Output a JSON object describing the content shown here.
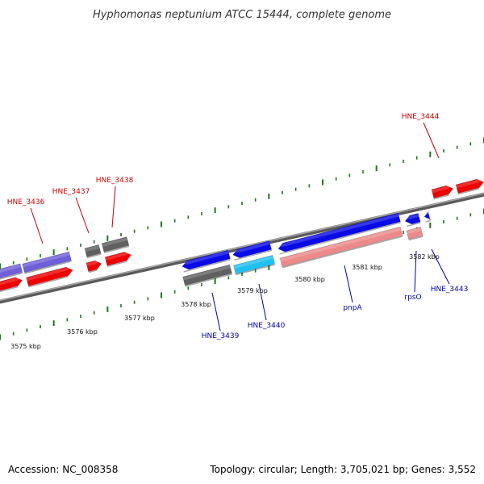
{
  "title": "Hyphomonas neptunium ATCC 15444, complete genome",
  "footer": {
    "accession": "Accession: NC_008358",
    "topology": "Topology: circular; Length: 3,705,021 bp; Genes: 3,552"
  },
  "colors": {
    "backbone": "#7a7a7a",
    "tick": "#1a7a1a",
    "label_forward": "#cc0000",
    "label_reverse": "#0000aa",
    "leader": "#000000"
  },
  "scale_labels": [
    "3575 kbp",
    "3576 kbp",
    "3577 kbp",
    "3578 kbp",
    "3579 kbp",
    "3580 kbp",
    "3581 kbp",
    "3582 kbp"
  ],
  "gene_labels": [
    {
      "name": "HNE_3436",
      "strand": "forward"
    },
    {
      "name": "HNE_3437",
      "strand": "forward"
    },
    {
      "name": "HNE_3438",
      "strand": "forward"
    },
    {
      "name": "HNE_3444",
      "strand": "forward"
    },
    {
      "name": "HNE_3439",
      "strand": "reverse"
    },
    {
      "name": "HNE_3440",
      "strand": "reverse"
    },
    {
      "name": "pnpA",
      "strand": "reverse"
    },
    {
      "name": "rpsO",
      "strand": "reverse"
    },
    {
      "name": "HNE_3443",
      "strand": "reverse"
    }
  ],
  "features": [
    {
      "name": "purple-reverse-1",
      "color": "#6f5fd8",
      "strand": "reverse"
    },
    {
      "name": "purple-reverse-2",
      "color": "#6f5fd8",
      "strand": "reverse"
    },
    {
      "name": "red-forward-1",
      "color": "#ee0000",
      "strand": "forward"
    },
    {
      "name": "red-forward-2",
      "color": "#ee0000",
      "strand": "forward"
    },
    {
      "name": "red-forward-3",
      "color": "#ee0000",
      "strand": "forward"
    },
    {
      "name": "red-forward-4",
      "color": "#ee0000",
      "strand": "forward"
    },
    {
      "name": "red-forward-5",
      "color": "#ee0000",
      "strand": "forward"
    },
    {
      "name": "red-forward-6",
      "color": "#ee0000",
      "strand": "forward"
    },
    {
      "name": "gray-feature-1",
      "color": "#606060",
      "strand": "reverse"
    },
    {
      "name": "gray-feature-2",
      "color": "#606060",
      "strand": "reverse"
    },
    {
      "name": "gray-feature-3",
      "color": "#606060",
      "strand": "reverse"
    },
    {
      "name": "blue-reverse-1",
      "color": "#0a0ae6",
      "strand": "reverse"
    },
    {
      "name": "blue-reverse-2",
      "color": "#0a0ae6",
      "strand": "reverse"
    },
    {
      "name": "blue-reverse-3",
      "color": "#0a0ae6",
      "strand": "reverse"
    },
    {
      "name": "blue-reverse-4",
      "color": "#0a0ae6",
      "strand": "reverse"
    },
    {
      "name": "blue-reverse-5",
      "color": "#0a0ae6",
      "strand": "reverse"
    },
    {
      "name": "cyan-reverse-1",
      "color": "#20c0f0",
      "strand": "reverse"
    },
    {
      "name": "pink-feature-1",
      "color": "#ec8a8a",
      "strand": "reverse"
    },
    {
      "name": "pink-feature-2",
      "color": "#ec8a8a",
      "strand": "reverse"
    }
  ]
}
